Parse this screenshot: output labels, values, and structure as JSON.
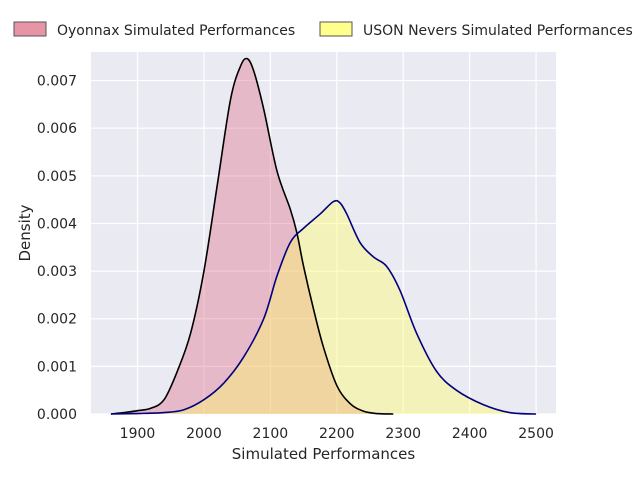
{
  "chart_data": {
    "type": "area",
    "xlabel": "Simulated Performances",
    "ylabel": "Density",
    "xlim": [
      1830,
      2530
    ],
    "ylim": [
      0,
      0.0076
    ],
    "xticks": [
      1900,
      2000,
      2100,
      2200,
      2300,
      2400,
      2500
    ],
    "yticks": [
      0.0,
      0.001,
      0.002,
      0.003,
      0.004,
      0.005,
      0.006,
      0.007
    ],
    "ytick_labels": [
      "0.000",
      "0.001",
      "0.002",
      "0.003",
      "0.004",
      "0.005",
      "0.006",
      "0.007"
    ],
    "grid": true,
    "legend_position": "top",
    "background_color": "#eaeaf2",
    "series": [
      {
        "name": "Oyonnax Simulated Performances",
        "fill_color": "#e0708a",
        "line_color": "#000000",
        "x": [
          1860,
          1880,
          1900,
          1920,
          1940,
          1960,
          1980,
          2000,
          2020,
          2040,
          2055,
          2065,
          2075,
          2090,
          2110,
          2130,
          2140,
          2150,
          2165,
          2180,
          2200,
          2220,
          2240,
          2260,
          2285
        ],
        "y": [
          0.0,
          3e-05,
          7e-05,
          0.00012,
          0.0003,
          0.0009,
          0.0017,
          0.003,
          0.0048,
          0.0066,
          0.0073,
          0.00746,
          0.0072,
          0.0064,
          0.0051,
          0.0043,
          0.0038,
          0.0031,
          0.0022,
          0.0014,
          0.0006,
          0.00022,
          6e-05,
          1e-05,
          0.0
        ]
      },
      {
        "name": "USON Nevers Simulated Performances",
        "fill_color": "#ffff66",
        "line_color": "#000080",
        "x": [
          1860,
          1900,
          1940,
          1970,
          2000,
          2030,
          2060,
          2090,
          2110,
          2130,
          2150,
          2175,
          2195,
          2205,
          2215,
          2235,
          2255,
          2275,
          2295,
          2320,
          2350,
          2380,
          2420,
          2460,
          2500
        ],
        "y": [
          0.0,
          1e-05,
          3e-05,
          9e-05,
          0.0003,
          0.00065,
          0.0012,
          0.002,
          0.0029,
          0.0036,
          0.0039,
          0.0042,
          0.00446,
          0.00443,
          0.0042,
          0.0036,
          0.0033,
          0.0031,
          0.0026,
          0.0017,
          0.0009,
          0.0005,
          0.0002,
          3e-05,
          0.0
        ]
      }
    ]
  }
}
